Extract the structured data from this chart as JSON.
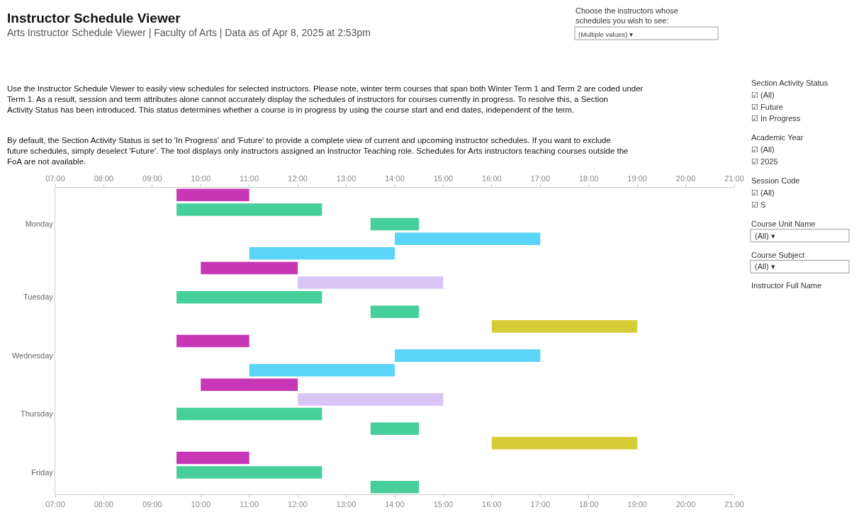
{
  "chart_data": {
    "type": "bar",
    "orientation": "horizontal",
    "title": "Instructor Schedule Viewer",
    "subtitle": "Arts Instructor Schedule Viewer | Faculty of Arts | Data as of Apr 8, 2025 at 2:53pm",
    "categories": [
      null,
      null,
      "Monday",
      null,
      null,
      null,
      null,
      "Tuesday",
      null,
      null,
      null,
      "Wednesday",
      null,
      null,
      null,
      "Thursday",
      null,
      null,
      null,
      "Friday",
      null
    ],
    "series": [
      {
        "color": "#47cf9b",
        "values": [
          null,
          3,
          1,
          null,
          null,
          null,
          null,
          3,
          1,
          null,
          null,
          null,
          null,
          null,
          null,
          3,
          1,
          null,
          null,
          3,
          1
        ],
        "base": [
          null,
          9.5,
          13.5,
          null,
          null,
          null,
          null,
          9.5,
          13.5,
          null,
          null,
          null,
          null,
          null,
          null,
          9.5,
          13.5,
          null,
          null,
          9.5,
          13.5
        ]
      },
      {
        "color": "#5ad5f9",
        "values": [
          null,
          null,
          null,
          3,
          3,
          null,
          null,
          null,
          null,
          null,
          null,
          3,
          3,
          null,
          null,
          null,
          null,
          null,
          null,
          null,
          null
        ],
        "base": [
          null,
          null,
          null,
          14,
          11,
          null,
          null,
          null,
          null,
          null,
          null,
          14,
          11,
          null,
          null,
          null,
          null,
          null,
          null,
          null,
          null
        ]
      },
      {
        "color": "#c837b5",
        "values": [
          1.5,
          null,
          null,
          null,
          null,
          2,
          null,
          null,
          null,
          null,
          1.5,
          null,
          null,
          2,
          null,
          null,
          null,
          null,
          1.5,
          null,
          null
        ],
        "base": [
          9.5,
          null,
          null,
          null,
          null,
          10,
          null,
          null,
          null,
          null,
          9.5,
          null,
          null,
          10,
          null,
          null,
          null,
          null,
          9.5,
          null,
          null
        ]
      },
      {
        "color": "#d8c4f5",
        "values": [
          null,
          null,
          null,
          null,
          null,
          null,
          3,
          null,
          null,
          null,
          null,
          null,
          null,
          null,
          3,
          null,
          null,
          null,
          null,
          null,
          null
        ],
        "base": [
          null,
          null,
          null,
          null,
          null,
          null,
          12,
          null,
          null,
          null,
          null,
          null,
          null,
          null,
          12,
          null,
          null,
          null,
          null,
          null,
          null
        ]
      },
      {
        "color": "#d6cc36",
        "values": [
          null,
          null,
          null,
          null,
          null,
          null,
          null,
          null,
          null,
          3,
          null,
          null,
          null,
          null,
          null,
          null,
          null,
          3,
          null,
          null,
          null
        ],
        "base": [
          null,
          null,
          null,
          null,
          null,
          null,
          null,
          null,
          null,
          16,
          null,
          null,
          null,
          null,
          null,
          null,
          null,
          16,
          null,
          null,
          null
        ]
      }
    ],
    "xlim": [
      7,
      21
    ],
    "xticks": [
      {
        "value": 7,
        "label": "07:00"
      },
      {
        "value": 8,
        "label": "08:00"
      },
      {
        "value": 9,
        "label": "09:00"
      },
      {
        "value": 10,
        "label": "10:00"
      },
      {
        "value": 11,
        "label": "11:00"
      },
      {
        "value": 12,
        "label": "12:00"
      },
      {
        "value": 13,
        "label": "13:00"
      },
      {
        "value": 14,
        "label": "14:00"
      },
      {
        "value": 15,
        "label": "15:00"
      },
      {
        "value": 16,
        "label": "16:00"
      },
      {
        "value": 17,
        "label": "17:00"
      },
      {
        "value": 18,
        "label": "18:00"
      },
      {
        "value": 19,
        "label": "19:00"
      },
      {
        "value": 20,
        "label": "20:00"
      },
      {
        "value": 21,
        "label": "21:00"
      }
    ],
    "x2lim": [
      7,
      21
    ],
    "x2ticks": [
      {
        "value": 7,
        "label": "07:00"
      },
      {
        "value": 8,
        "label": "08:00"
      },
      {
        "value": 9,
        "label": "09:00"
      },
      {
        "value": 10,
        "label": "10:00"
      },
      {
        "value": 11,
        "label": "11:00"
      },
      {
        "value": 12,
        "label": "12:00"
      },
      {
        "value": 13,
        "label": "13:00"
      },
      {
        "value": 14,
        "label": "14:00"
      },
      {
        "value": 15,
        "label": "15:00"
      },
      {
        "value": 16,
        "label": "16:00"
      },
      {
        "value": 17,
        "label": "17:00"
      },
      {
        "value": 18,
        "label": "18:00"
      },
      {
        "value": 19,
        "label": "19:00"
      },
      {
        "value": 20,
        "label": "20:00"
      },
      {
        "value": 21,
        "label": "21:00"
      }
    ],
    "grid": false,
    "annotations": [
      "Use the Instructor Schedule Viewer to easily view schedules for selected instructors. Please note, winter term courses that span both Winter Term 1 and Term 2 are coded under Term 1. As a result, session and term attributes alone cannot accurately display the schedules of instructors for courses currently in progress. To resolve this, a Section Activity Status has been introduced. This status determines whether a course is in progress by using the course start and end dates, independent of the term.",
      "By default, the Section Activity Status is set to 'In Progress' and 'Future' to provide a complete view of current and upcoming instructor schedules. If you want to exclude future schedules, simply deselect 'Future'. The tool displays only instructors assigned an Instructor Teaching role. Schedules for Arts instructors teaching courses outside the FoA are not available.",
      "Choose the instructors whose schedules you wish to see:",
      "(Multiple values) ▾",
      "Section Activity Status",
      "☑ (All)",
      "☑ Future",
      "☑ In Progress",
      "Academic Year",
      "☑ (All)",
      "☑ 2025",
      "Session Code",
      "☑ (All)",
      "☑ S",
      "Course Unit Name",
      "(All) ▾",
      "Course Subject",
      "(All) ▾",
      "Instructor Full Name"
    ]
  }
}
